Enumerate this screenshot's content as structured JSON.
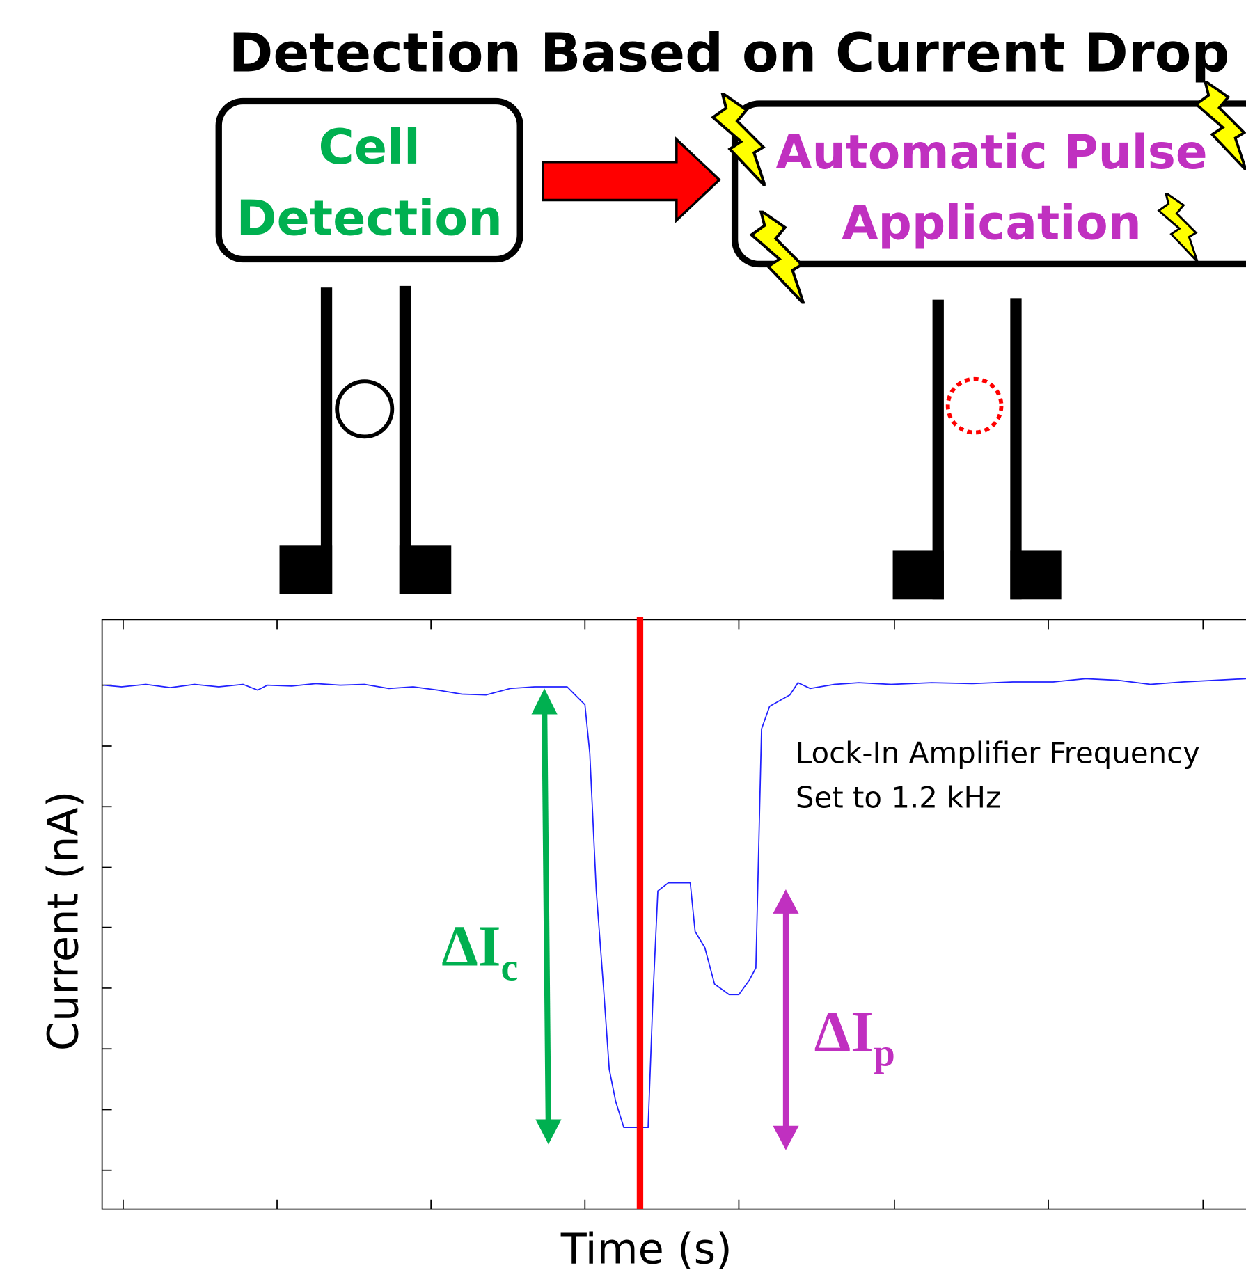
{
  "title": "Detection Based on Current Drop",
  "left_box": {
    "lines": [
      "Cell",
      "Detection"
    ]
  },
  "right_box": {
    "lines": [
      "Automatic Pulse",
      "Application"
    ]
  },
  "plot": {
    "annotation": [
      "Lock-In Amplifier Frequency",
      "Set to 1.2 kHz"
    ],
    "y_label": "Current (nA)",
    "x_label": "Time (s)",
    "delta_c": {
      "symbol": "ΔI",
      "subscript": "c"
    },
    "delta_p": {
      "symbol": "ΔI",
      "subscript": "p"
    }
  }
}
